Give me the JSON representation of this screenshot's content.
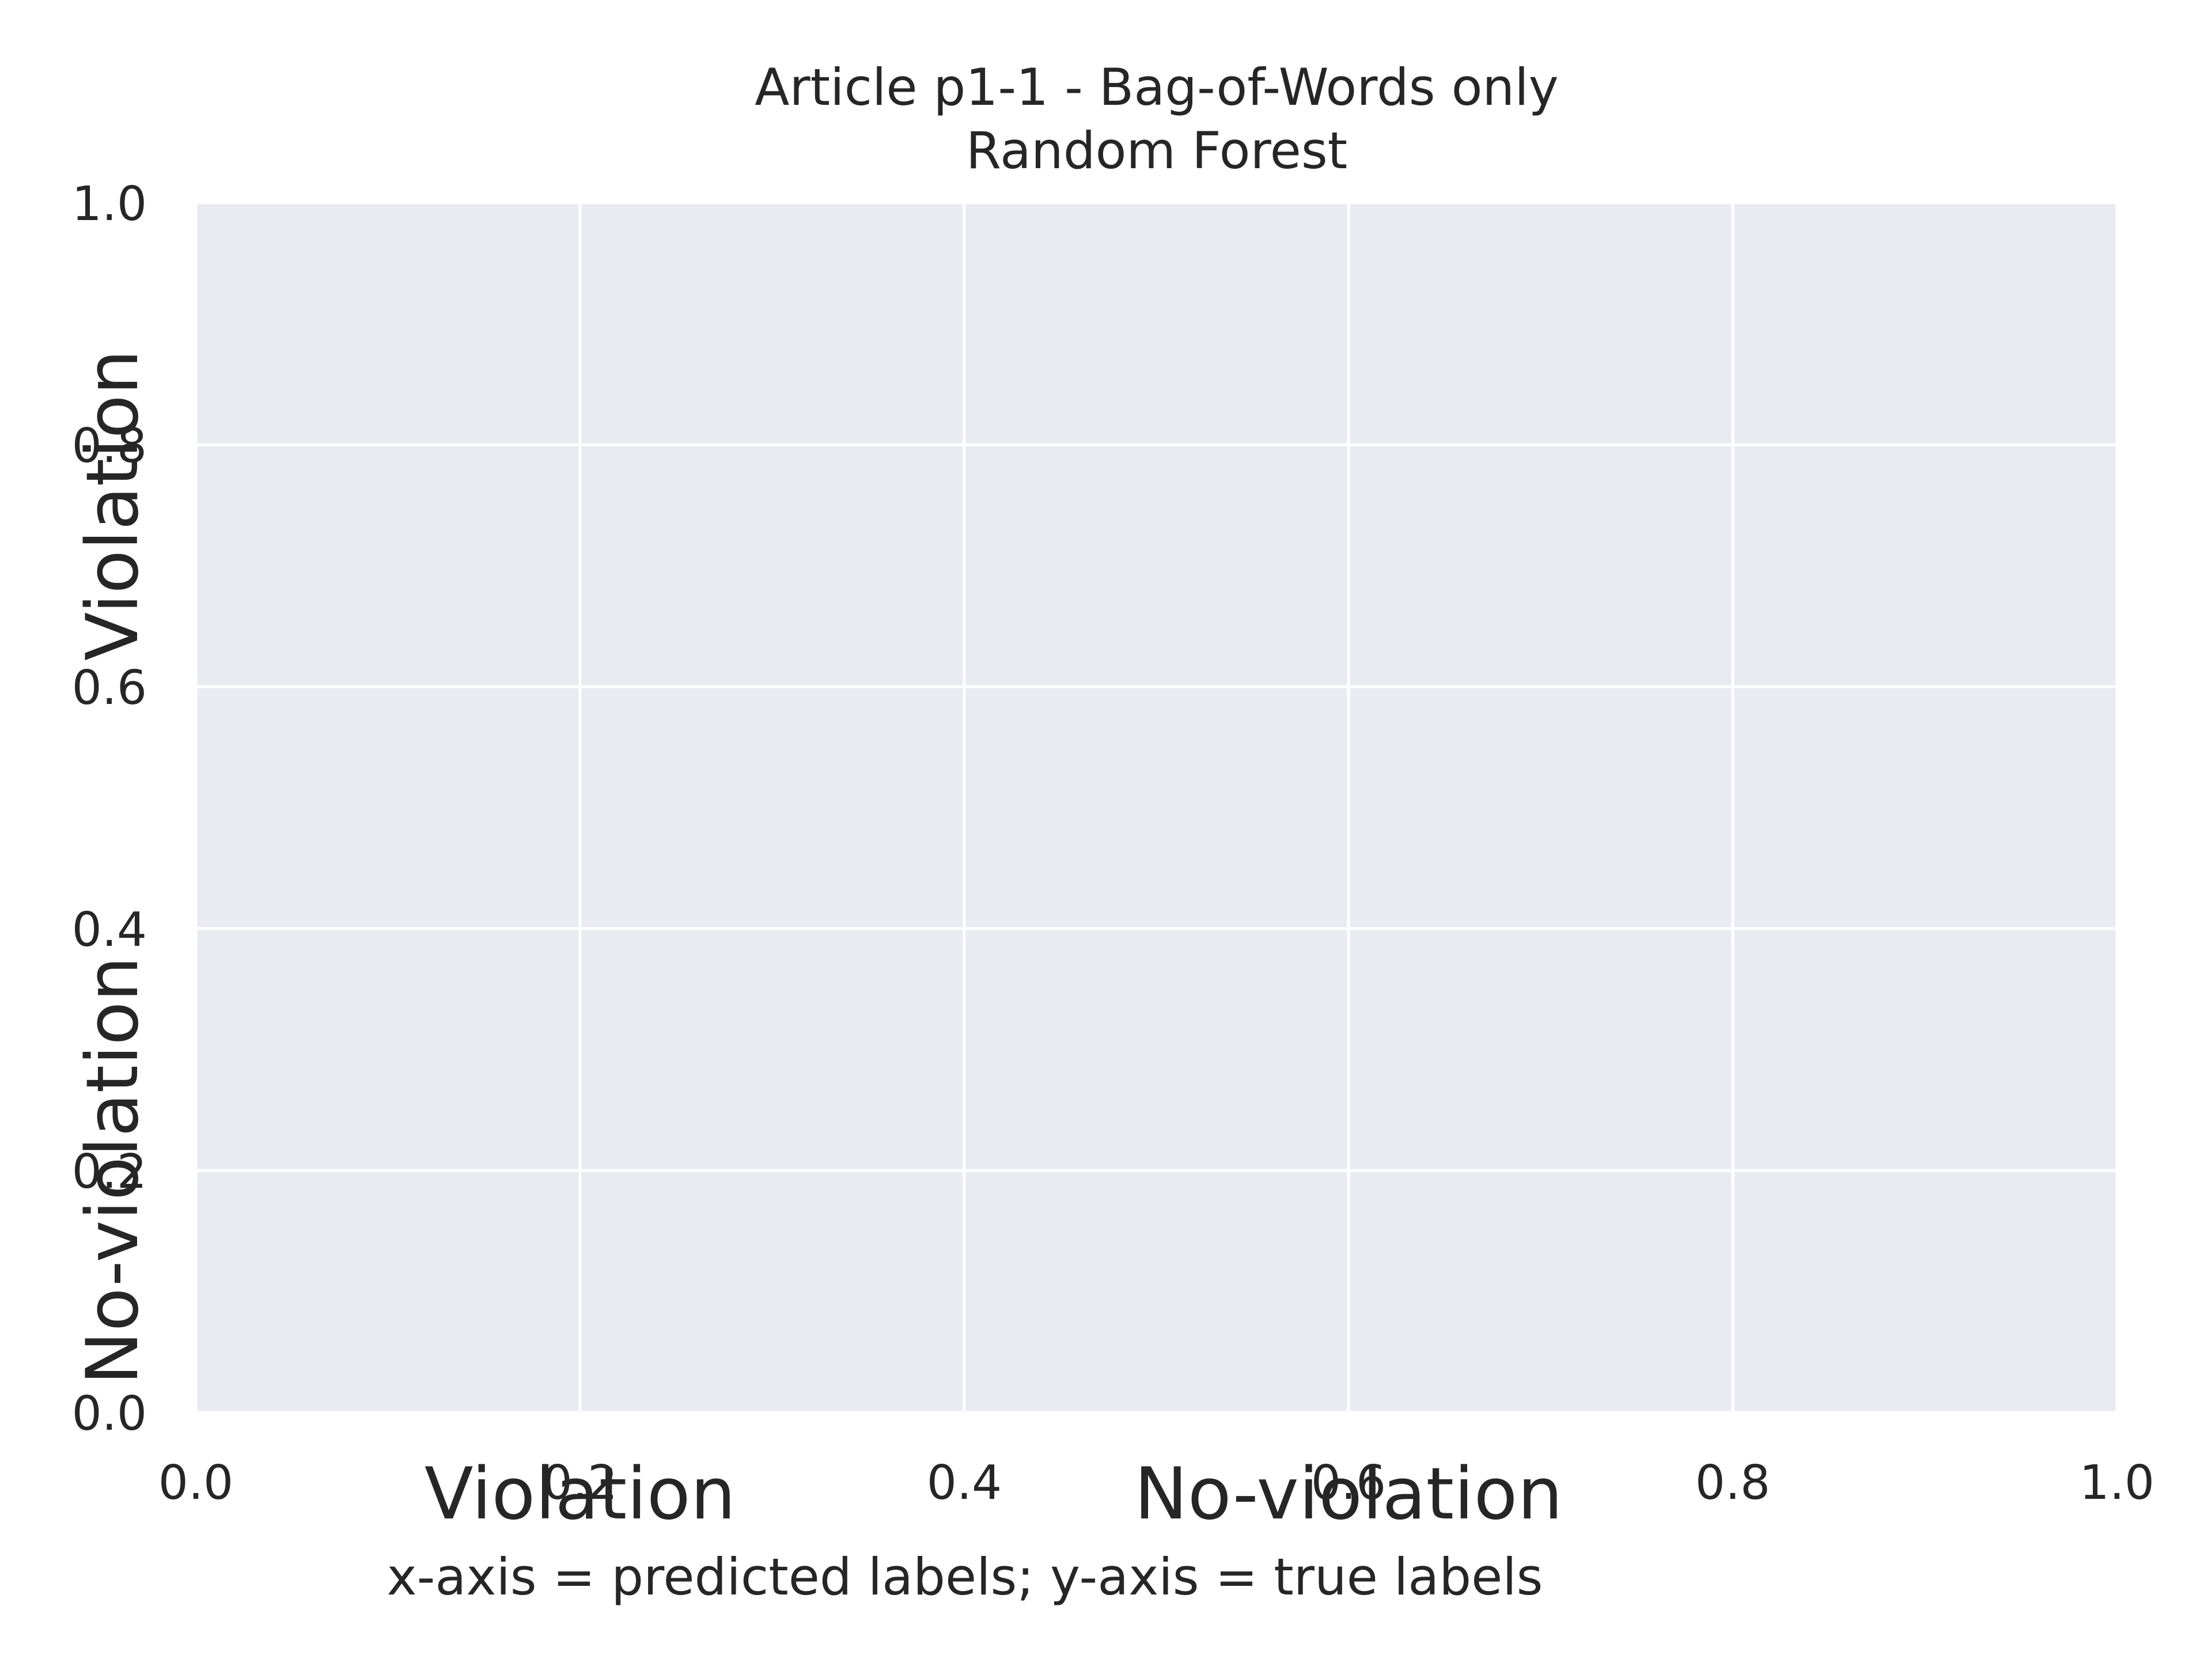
{
  "chart_data": {
    "type": "heatmap",
    "title": "Article p1-1 - Bag-of-Words only",
    "subtitle": "Random Forest",
    "xlim": [
      0.0,
      1.0
    ],
    "ylim": [
      0.0,
      1.0
    ],
    "x_ticks": [
      "0.0",
      "0.2",
      "0.4",
      "0.6",
      "0.8",
      "1.0"
    ],
    "y_ticks": [
      "0.0",
      "0.2",
      "0.4",
      "0.6",
      "0.8",
      "1.0"
    ],
    "x_categories": [
      "Violation",
      "No-violation"
    ],
    "y_categories": [
      "Violation",
      "No-violation"
    ],
    "values": [],
    "grid": true,
    "note": "x-axis = predicted labels; y-axis = true labels",
    "colors": {
      "plot_background": "#eaeaf2",
      "grid": "#ffffff",
      "text": "#262626"
    }
  }
}
